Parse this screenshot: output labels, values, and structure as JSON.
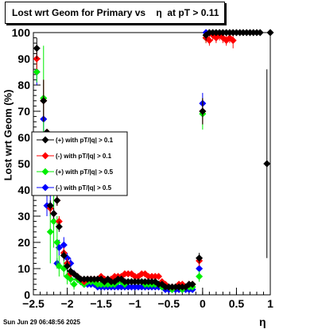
{
  "title": "Lost wrt Geom for Primary vs    η  at pT > 0.11",
  "timestamp": "Sun Jun 29 06:48:56 2025",
  "chart_data": {
    "type": "scatter",
    "title": "Lost wrt Geom for Primary vs    η  at pT > 0.11",
    "xlabel": "η",
    "ylabel": "Lost wrt Geom (%)",
    "xlim": [
      -2.5,
      1.0
    ],
    "ylim": [
      0,
      100
    ],
    "grid": true,
    "legend_position": "left-middle",
    "x_ticks": [
      "−2.5",
      "−2",
      "−1.5",
      "−1",
      "−0.5",
      "0",
      "0.5",
      "1"
    ],
    "x_tick_values": [
      -2.5,
      -2.0,
      -1.5,
      -1.0,
      -0.5,
      0.0,
      0.5,
      1.0
    ],
    "y_ticks": [
      "0",
      "10",
      "20",
      "30",
      "40",
      "50",
      "60",
      "70",
      "80",
      "90",
      "100"
    ],
    "y_tick_values": [
      0,
      10,
      20,
      30,
      40,
      50,
      60,
      70,
      80,
      90,
      100
    ],
    "series": [
      {
        "name": "(+) with pT/|q| > 0.1",
        "color": "#000000",
        "points": [
          [
            -2.45,
            94,
            4
          ],
          [
            -2.35,
            74,
            8
          ],
          [
            -2.3,
            62,
            0
          ],
          [
            -2.25,
            34,
            2
          ],
          [
            -2.2,
            31,
            2
          ],
          [
            -2.15,
            36,
            2
          ],
          [
            -2.12,
            26,
            2
          ],
          [
            -2.05,
            15,
            2
          ],
          [
            -2.0,
            11,
            2
          ],
          [
            -1.95,
            9,
            1.5
          ],
          [
            -1.9,
            8,
            1
          ],
          [
            -1.85,
            7,
            1
          ],
          [
            -1.8,
            6,
            1
          ],
          [
            -1.75,
            6,
            1
          ],
          [
            -1.7,
            6,
            1
          ],
          [
            -1.65,
            6,
            1
          ],
          [
            -1.6,
            6,
            1
          ],
          [
            -1.55,
            6,
            1
          ],
          [
            -1.5,
            6,
            1
          ],
          [
            -1.45,
            5,
            1
          ],
          [
            -1.4,
            6,
            1
          ],
          [
            -1.35,
            5,
            1
          ],
          [
            -1.3,
            5,
            1
          ],
          [
            -1.25,
            6,
            1
          ],
          [
            -1.2,
            6,
            1
          ],
          [
            -1.15,
            5,
            1
          ],
          [
            -1.1,
            5,
            1
          ],
          [
            -1.05,
            5,
            1
          ],
          [
            -1.0,
            5,
            1
          ],
          [
            -0.95,
            5,
            1
          ],
          [
            -0.9,
            5,
            1
          ],
          [
            -0.85,
            5,
            1
          ],
          [
            -0.8,
            5,
            1
          ],
          [
            -0.75,
            5,
            1
          ],
          [
            -0.7,
            5,
            1
          ],
          [
            -0.65,
            4,
            1
          ],
          [
            -0.6,
            4,
            1
          ],
          [
            -0.55,
            3,
            1
          ],
          [
            -0.5,
            3,
            1
          ],
          [
            -0.45,
            3,
            1
          ],
          [
            -0.4,
            3,
            1
          ],
          [
            -0.35,
            3,
            1
          ],
          [
            -0.3,
            3,
            1
          ],
          [
            -0.25,
            3,
            1
          ],
          [
            -0.2,
            4,
            1
          ],
          [
            -0.15,
            4,
            1
          ],
          [
            -0.05,
            14,
            2
          ],
          [
            0.0,
            70,
            5
          ],
          [
            0.05,
            99,
            2
          ],
          [
            0.1,
            100,
            1
          ],
          [
            0.15,
            100,
            1
          ],
          [
            0.2,
            100,
            1
          ],
          [
            0.25,
            100,
            1
          ],
          [
            0.3,
            100,
            1
          ],
          [
            0.35,
            100,
            1
          ],
          [
            0.4,
            100,
            1
          ],
          [
            0.45,
            100,
            1
          ],
          [
            0.5,
            100,
            1
          ],
          [
            0.55,
            100,
            1
          ],
          [
            0.6,
            100,
            1
          ],
          [
            0.65,
            100,
            1
          ],
          [
            0.7,
            100,
            1
          ],
          [
            0.75,
            100,
            1
          ],
          [
            0.8,
            100,
            1
          ],
          [
            0.85,
            100,
            1
          ],
          [
            0.95,
            50,
            36
          ],
          [
            1.0,
            100,
            1
          ]
        ]
      },
      {
        "name": "(-) with pT/|q| > 0.1",
        "color": "#ff0000",
        "points": [
          [
            -2.45,
            90,
            4
          ],
          [
            -2.35,
            74,
            8
          ],
          [
            -2.3,
            62,
            0
          ],
          [
            -2.25,
            33,
            2
          ],
          [
            -2.2,
            31,
            2
          ],
          [
            -2.15,
            36,
            2
          ],
          [
            -2.12,
            28,
            2
          ],
          [
            -2.05,
            16,
            2
          ],
          [
            -2.0,
            12,
            2
          ],
          [
            -1.95,
            8,
            1.5
          ],
          [
            -1.9,
            8,
            1
          ],
          [
            -1.85,
            7,
            1
          ],
          [
            -1.8,
            6,
            1
          ],
          [
            -1.75,
            5,
            1
          ],
          [
            -1.7,
            6,
            1
          ],
          [
            -1.65,
            6,
            1
          ],
          [
            -1.6,
            6,
            1
          ],
          [
            -1.55,
            6,
            1
          ],
          [
            -1.5,
            7,
            1
          ],
          [
            -1.45,
            6,
            1
          ],
          [
            -1.4,
            6,
            1
          ],
          [
            -1.35,
            6,
            1
          ],
          [
            -1.3,
            7,
            1
          ],
          [
            -1.25,
            7,
            1
          ],
          [
            -1.2,
            7,
            1
          ],
          [
            -1.15,
            8,
            1
          ],
          [
            -1.1,
            8,
            1
          ],
          [
            -1.05,
            8,
            1
          ],
          [
            -1.0,
            7,
            1
          ],
          [
            -0.95,
            7,
            1
          ],
          [
            -0.9,
            8,
            1
          ],
          [
            -0.85,
            8,
            1
          ],
          [
            -0.8,
            7,
            1
          ],
          [
            -0.75,
            7,
            1
          ],
          [
            -0.7,
            7,
            1
          ],
          [
            -0.65,
            7,
            1
          ],
          [
            -0.6,
            5,
            1
          ],
          [
            -0.55,
            4,
            1
          ],
          [
            -0.5,
            3,
            1
          ],
          [
            -0.45,
            3,
            1
          ],
          [
            -0.4,
            3,
            1
          ],
          [
            -0.35,
            4,
            1
          ],
          [
            -0.3,
            4,
            1
          ],
          [
            -0.25,
            3,
            1
          ],
          [
            -0.2,
            4,
            1
          ],
          [
            -0.15,
            4,
            1
          ],
          [
            -0.05,
            13,
            2
          ],
          [
            0.0,
            70,
            5
          ],
          [
            0.05,
            98,
            2
          ],
          [
            0.1,
            97,
            2
          ],
          [
            0.15,
            99,
            2
          ],
          [
            0.2,
            98,
            2
          ],
          [
            0.25,
            99,
            2
          ],
          [
            0.3,
            98,
            2
          ],
          [
            0.35,
            97,
            2
          ],
          [
            0.4,
            98,
            2
          ],
          [
            0.45,
            97,
            3
          ]
        ]
      },
      {
        "name": "(+) with pT/|q| > 0.5",
        "color": "#00ee00",
        "points": [
          [
            -2.45,
            85,
            4
          ],
          [
            -2.35,
            75,
            20
          ],
          [
            -2.3,
            53,
            8
          ],
          [
            -2.25,
            24,
            12
          ],
          [
            -2.2,
            28,
            10
          ],
          [
            -2.15,
            20,
            10
          ],
          [
            -2.12,
            11,
            4
          ],
          [
            -2.05,
            10,
            3
          ],
          [
            -2.0,
            7,
            3
          ],
          [
            -1.95,
            6,
            2
          ],
          [
            -1.9,
            4,
            2
          ],
          [
            -1.85,
            6,
            1.5
          ],
          [
            -1.8,
            5,
            1
          ],
          [
            -1.75,
            4,
            1
          ],
          [
            -1.7,
            5,
            1
          ],
          [
            -1.65,
            5,
            1
          ],
          [
            -1.6,
            5,
            1
          ],
          [
            -1.55,
            4,
            1
          ],
          [
            -1.5,
            4,
            1
          ],
          [
            -1.45,
            4,
            1
          ],
          [
            -1.4,
            4,
            1
          ],
          [
            -1.35,
            4,
            1
          ],
          [
            -1.3,
            4,
            1
          ],
          [
            -1.25,
            5,
            1
          ],
          [
            -1.2,
            5,
            1
          ],
          [
            -1.15,
            4,
            1
          ],
          [
            -1.1,
            5,
            1
          ],
          [
            -1.05,
            5,
            1
          ],
          [
            -1.0,
            5,
            1
          ],
          [
            -0.95,
            5,
            1
          ],
          [
            -0.9,
            5,
            1
          ],
          [
            -0.85,
            4,
            1
          ],
          [
            -0.8,
            4,
            1
          ],
          [
            -0.75,
            4,
            1
          ],
          [
            -0.7,
            4,
            1
          ],
          [
            -0.65,
            4,
            1
          ],
          [
            -0.6,
            3,
            1
          ],
          [
            -0.55,
            3,
            1
          ],
          [
            -0.5,
            3,
            1
          ],
          [
            -0.45,
            2,
            1
          ],
          [
            -0.4,
            3,
            1
          ],
          [
            -0.35,
            3,
            1
          ],
          [
            -0.3,
            2,
            1
          ],
          [
            -0.25,
            3,
            1
          ],
          [
            -0.2,
            3,
            1
          ],
          [
            -0.15,
            3,
            1
          ],
          [
            -0.05,
            7,
            2
          ],
          [
            0.0,
            69,
            6
          ],
          [
            0.05,
            98,
            2
          ]
        ]
      },
      {
        "name": "(-) with pT/|q| > 0.5",
        "color": "#0000ff",
        "points": [
          [
            -2.45,
            85,
            5
          ],
          [
            -2.35,
            67,
            6
          ],
          [
            -2.3,
            34,
            4
          ],
          [
            -2.25,
            34,
            4
          ],
          [
            -2.2,
            31,
            4
          ],
          [
            -2.15,
            12,
            2
          ],
          [
            -2.12,
            18,
            3
          ],
          [
            -2.05,
            19,
            3
          ],
          [
            -2.0,
            14,
            2
          ],
          [
            -1.95,
            12,
            2
          ],
          [
            -1.9,
            8,
            1.5
          ],
          [
            -1.85,
            6,
            1
          ],
          [
            -1.8,
            5,
            1
          ],
          [
            -1.75,
            4,
            1
          ],
          [
            -1.7,
            4,
            1
          ],
          [
            -1.65,
            4,
            1
          ],
          [
            -1.6,
            4,
            1
          ],
          [
            -1.55,
            3,
            1
          ],
          [
            -1.5,
            3,
            1
          ],
          [
            -1.45,
            3,
            1
          ],
          [
            -1.4,
            3,
            1
          ],
          [
            -1.35,
            3,
            1
          ],
          [
            -1.3,
            3,
            1
          ],
          [
            -1.25,
            3,
            1
          ],
          [
            -1.2,
            3,
            1
          ],
          [
            -1.15,
            3,
            1
          ],
          [
            -1.1,
            3,
            1
          ],
          [
            -1.05,
            3,
            1
          ],
          [
            -1.0,
            3,
            1
          ],
          [
            -0.95,
            3,
            1
          ],
          [
            -0.9,
            3,
            1
          ],
          [
            -0.85,
            3,
            1
          ],
          [
            -0.8,
            3,
            1
          ],
          [
            -0.75,
            3,
            1
          ],
          [
            -0.7,
            3,
            1
          ],
          [
            -0.65,
            3,
            1
          ],
          [
            -0.6,
            3,
            1
          ],
          [
            -0.55,
            2,
            1
          ],
          [
            -0.5,
            2,
            1
          ],
          [
            -0.45,
            2,
            1
          ],
          [
            -0.4,
            2,
            1
          ],
          [
            -0.35,
            2,
            1
          ],
          [
            -0.3,
            2,
            1
          ],
          [
            -0.25,
            2,
            1
          ],
          [
            -0.2,
            2,
            1
          ],
          [
            -0.15,
            2,
            1
          ],
          [
            -0.05,
            10,
            2
          ],
          [
            0.0,
            73,
            4
          ],
          [
            0.05,
            100,
            1
          ]
        ]
      }
    ]
  }
}
